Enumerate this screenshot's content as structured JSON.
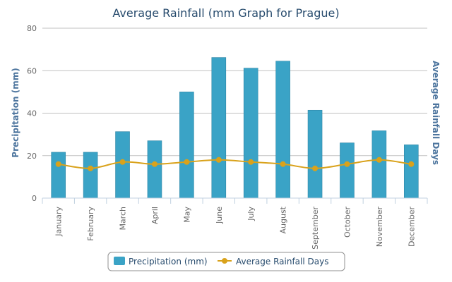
{
  "chart_data": {
    "type": "bar",
    "title": "Average Rainfall (mm Graph for Prague)",
    "categories": [
      "January",
      "February",
      "March",
      "April",
      "May",
      "June",
      "July",
      "August",
      "September",
      "October",
      "November",
      "December"
    ],
    "ylabel": "Precipitation (mm)",
    "ylabel_right": "Average Rainfall Days",
    "ylim": [
      0,
      80
    ],
    "yticks": [
      0,
      20,
      40,
      60,
      80
    ],
    "grid": true,
    "legend_position": "bottom",
    "series": [
      {
        "name": "Precipitation (mm)",
        "type": "bar",
        "color": "#3aa3c6",
        "values": [
          21.6,
          21.6,
          31.3,
          27.0,
          50.0,
          66.2,
          61.2,
          64.5,
          41.4,
          26.0,
          31.7,
          25.1
        ]
      },
      {
        "name": "Average Rainfall Days",
        "type": "line",
        "color": "#d9a21b",
        "values": [
          16,
          14,
          17,
          16,
          17,
          18,
          17,
          16,
          14,
          16,
          18,
          16
        ]
      }
    ]
  }
}
